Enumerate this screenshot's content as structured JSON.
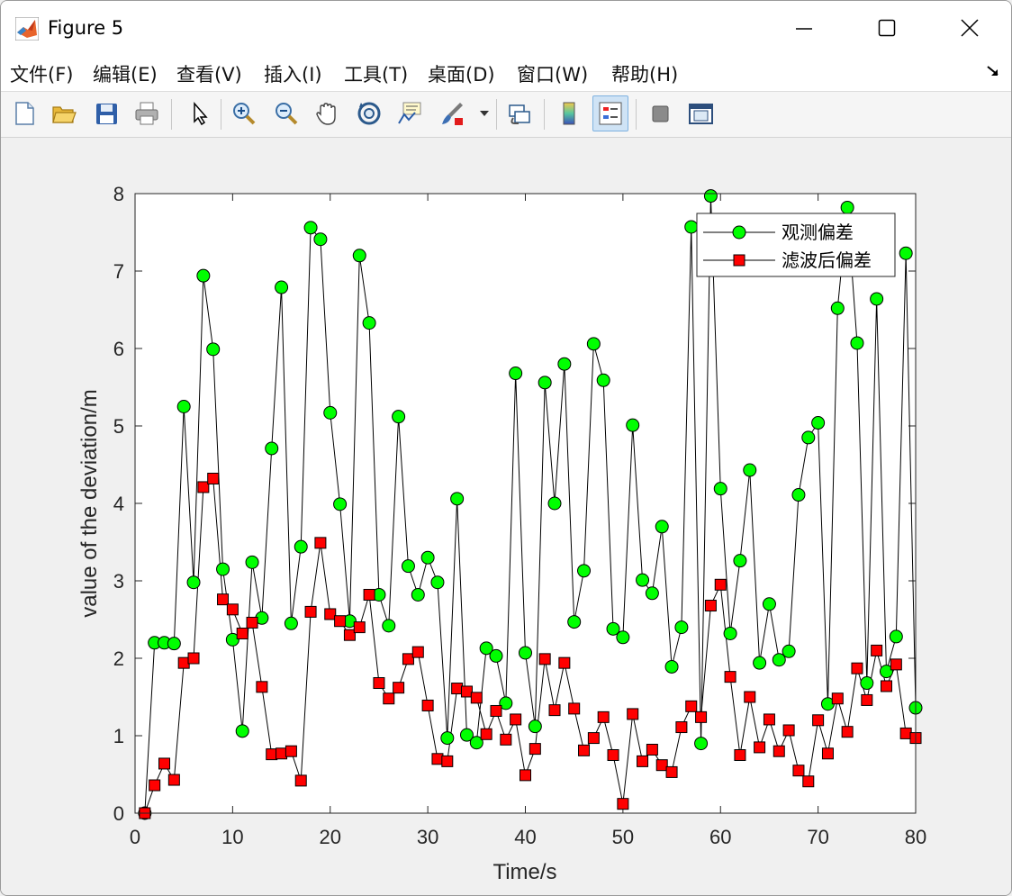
{
  "window": {
    "title": "Figure 5",
    "menu": [
      "文件(F)",
      "编辑(E)",
      "查看(V)",
      "插入(I)",
      "工具(T)",
      "桌面(D)",
      "窗口(W)",
      "帮助(H)"
    ]
  },
  "toolbar": {
    "buttons": [
      "new-figure",
      "open-file",
      "save-figure",
      "print-figure",
      "edit-plot-pointer",
      "zoom-in",
      "zoom-out",
      "pan",
      "rotate-3d",
      "data-cursor",
      "brush",
      "link-plot",
      "insert-colorbar",
      "insert-legend",
      "hide-plot-tools",
      "show-plot-tools"
    ]
  },
  "colors": {
    "observed_marker": "#00ff00",
    "filtered_marker": "#ff0000",
    "line": "#000000"
  },
  "chart_data": {
    "type": "line",
    "xlabel": "Time/s",
    "ylabel": "value of the deviation/m",
    "xlim": [
      0,
      80
    ],
    "ylim": [
      0,
      8
    ],
    "xticks": [
      0,
      10,
      20,
      30,
      40,
      50,
      60,
      70,
      80
    ],
    "yticks": [
      0,
      1,
      2,
      3,
      4,
      5,
      6,
      7,
      8
    ],
    "legend_position": "top-right",
    "x": [
      1,
      2,
      3,
      4,
      5,
      6,
      7,
      8,
      9,
      10,
      11,
      12,
      13,
      14,
      15,
      16,
      17,
      18,
      19,
      20,
      21,
      22,
      23,
      24,
      25,
      26,
      27,
      28,
      29,
      30,
      31,
      32,
      33,
      34,
      35,
      36,
      37,
      38,
      39,
      40,
      41,
      42,
      43,
      44,
      45,
      46,
      47,
      48,
      49,
      50,
      51,
      52,
      53,
      54,
      55,
      56,
      57,
      58,
      59,
      60,
      61,
      62,
      63,
      64,
      65,
      66,
      67,
      68,
      69,
      70,
      71,
      72,
      73,
      74,
      75,
      76,
      77,
      78,
      79,
      80
    ],
    "series": [
      {
        "name": "观测偏差",
        "marker": "circle",
        "color": "#00ff00",
        "values": [
          0.0,
          2.2,
          2.2,
          2.19,
          5.25,
          2.98,
          6.94,
          5.99,
          3.15,
          2.24,
          1.06,
          3.24,
          2.52,
          4.71,
          6.79,
          2.45,
          3.44,
          7.56,
          7.41,
          5.17,
          3.99,
          2.48,
          7.2,
          6.33,
          2.82,
          2.42,
          5.12,
          3.19,
          2.82,
          3.3,
          2.98,
          0.97,
          4.06,
          1.01,
          0.91,
          2.13,
          2.03,
          1.42,
          5.68,
          2.07,
          1.12,
          5.56,
          4.0,
          5.8,
          2.47,
          3.13,
          6.06,
          5.59,
          2.38,
          2.27,
          5.01,
          3.01,
          2.84,
          3.7,
          1.89,
          2.4,
          7.57,
          0.9,
          7.97,
          4.19,
          2.32,
          3.26,
          4.43,
          1.94,
          2.7,
          1.98,
          2.09,
          4.11,
          4.85,
          5.04,
          1.41,
          6.52,
          7.82,
          6.07,
          1.68,
          6.64,
          1.83,
          2.28,
          7.23,
          1.36
        ]
      },
      {
        "name": "滤波后偏差",
        "marker": "square",
        "color": "#ff0000",
        "values": [
          0.0,
          0.36,
          0.64,
          0.43,
          1.94,
          2.0,
          4.21,
          4.32,
          2.76,
          2.63,
          2.32,
          2.46,
          1.63,
          0.76,
          0.77,
          0.8,
          0.42,
          2.6,
          3.49,
          2.57,
          2.48,
          2.3,
          2.4,
          2.82,
          1.68,
          1.48,
          1.62,
          1.99,
          2.08,
          1.39,
          0.7,
          0.67,
          1.61,
          1.57,
          1.49,
          1.02,
          1.32,
          0.95,
          1.21,
          0.49,
          0.83,
          1.99,
          1.33,
          1.94,
          1.35,
          0.81,
          0.97,
          1.24,
          0.75,
          0.12,
          1.28,
          0.67,
          0.82,
          0.62,
          0.53,
          1.11,
          1.38,
          1.24,
          2.68,
          2.95,
          1.76,
          0.75,
          1.5,
          0.85,
          1.21,
          0.8,
          1.07,
          0.55,
          0.41,
          1.2,
          0.77,
          1.48,
          1.05,
          1.87,
          1.46,
          2.1,
          1.64,
          1.92,
          1.03,
          0.97
        ]
      }
    ]
  }
}
